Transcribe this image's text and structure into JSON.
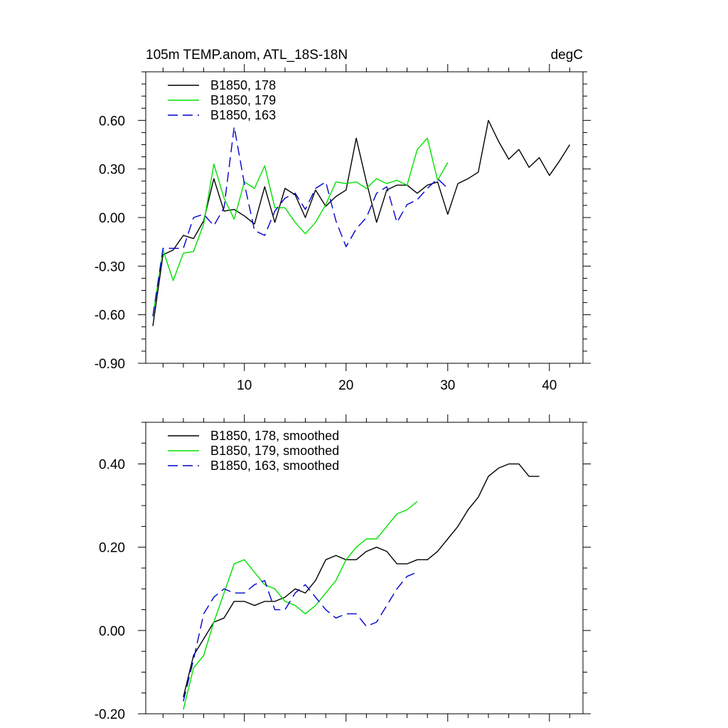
{
  "colors": {
    "black_series": "#000000",
    "green_series": "#00e000",
    "blue_series": "#0000cc"
  },
  "chart_data": [
    {
      "type": "line",
      "title": "105m TEMP.anom, ATL_18S-18N",
      "units": "degC",
      "xlabel": "",
      "ylabel": "",
      "xlim": [
        0.3,
        43.3
      ],
      "ylim": [
        -0.9,
        0.9
      ],
      "xticks": [
        10,
        20,
        30,
        40
      ],
      "xticklabels": [
        "10",
        "20",
        "30",
        "40"
      ],
      "yticks": [
        -0.9,
        -0.6,
        -0.3,
        0.0,
        0.3,
        0.6
      ],
      "yticklabels": [
        "-0.90",
        "-0.60",
        "-0.30",
        "0.00",
        "0.30",
        "0.60"
      ],
      "legend_position": "top-left",
      "series": [
        {
          "name": "B1850, 178",
          "color": "#000000",
          "dash": "solid",
          "x_start": 1,
          "values": [
            -0.67,
            -0.23,
            -0.2,
            -0.11,
            -0.13,
            -0.02,
            0.24,
            0.04,
            0.05,
            0.01,
            -0.04,
            0.19,
            -0.03,
            0.18,
            0.14,
            0.0,
            0.17,
            0.07,
            0.13,
            0.17,
            0.49,
            0.22,
            -0.03,
            0.17,
            0.2,
            0.2,
            0.15,
            0.2,
            0.22,
            0.02,
            0.21,
            0.24,
            0.28,
            0.6,
            0.47,
            0.36,
            0.42,
            0.31,
            0.37,
            0.26,
            0.35,
            0.45
          ]
        },
        {
          "name": "B1850, 179",
          "color": "#00e000",
          "dash": "solid",
          "x_start": 1,
          "values": [
            -0.61,
            -0.2,
            -0.39,
            -0.22,
            -0.21,
            -0.04,
            0.33,
            0.12,
            -0.01,
            0.22,
            0.18,
            0.32,
            0.06,
            0.06,
            -0.03,
            -0.1,
            -0.03,
            0.08,
            0.22,
            0.21,
            0.22,
            0.18,
            0.24,
            0.21,
            0.23,
            0.2,
            0.42,
            0.49,
            0.23,
            0.34
          ]
        },
        {
          "name": "B1850, 163",
          "color": "#0000cc",
          "dash": "dashed",
          "x_start": 1,
          "values": [
            -0.61,
            -0.19,
            -0.19,
            -0.19,
            0.0,
            0.02,
            -0.05,
            0.06,
            0.56,
            0.21,
            -0.08,
            -0.11,
            0.04,
            0.12,
            0.15,
            0.05,
            0.18,
            0.22,
            -0.02,
            -0.18,
            -0.07,
            0.0,
            0.15,
            0.19,
            -0.03,
            0.08,
            0.11,
            0.18,
            0.24,
            0.18
          ]
        }
      ]
    },
    {
      "type": "line",
      "title": "",
      "units": "",
      "xlabel": "",
      "ylabel": "",
      "xlim": [
        0.3,
        43.3
      ],
      "ylim": [
        -0.2,
        0.5
      ],
      "xticks": [
        10,
        20,
        30,
        40
      ],
      "xticklabels": [
        "",
        "",
        "",
        ""
      ],
      "yticks": [
        -0.2,
        0.0,
        0.2,
        0.4
      ],
      "yticklabels": [
        "-0.20",
        "0.00",
        "0.20",
        "0.40"
      ],
      "legend_position": "top-left",
      "series": [
        {
          "name": "B1850, 178, smoothed",
          "color": "#000000",
          "dash": "solid",
          "x_start": 4,
          "values": [
            -0.16,
            -0.06,
            -0.02,
            0.02,
            0.03,
            0.07,
            0.07,
            0.06,
            0.07,
            0.07,
            0.08,
            0.1,
            0.09,
            0.12,
            0.17,
            0.18,
            0.17,
            0.17,
            0.19,
            0.2,
            0.19,
            0.16,
            0.16,
            0.17,
            0.17,
            0.19,
            0.22,
            0.25,
            0.29,
            0.32,
            0.37,
            0.39,
            0.4,
            0.4,
            0.37,
            0.37
          ]
        },
        {
          "name": "B1850, 179, smoothed",
          "color": "#00e000",
          "dash": "solid",
          "x_start": 4,
          "values": [
            -0.19,
            -0.09,
            -0.06,
            0.02,
            0.09,
            0.16,
            0.17,
            0.14,
            0.11,
            0.1,
            0.07,
            0.06,
            0.04,
            0.06,
            0.09,
            0.12,
            0.17,
            0.2,
            0.22,
            0.22,
            0.25,
            0.28,
            0.29,
            0.31
          ]
        },
        {
          "name": "B1850, 163, smoothed",
          "color": "#0000cc",
          "dash": "dashed",
          "x_start": 4,
          "values": [
            -0.17,
            -0.07,
            0.04,
            0.08,
            0.1,
            0.09,
            0.09,
            0.11,
            0.12,
            0.05,
            0.05,
            0.09,
            0.11,
            0.08,
            0.05,
            0.03,
            0.04,
            0.04,
            0.01,
            0.02,
            0.06,
            0.1,
            0.13,
            0.14
          ]
        }
      ]
    }
  ]
}
